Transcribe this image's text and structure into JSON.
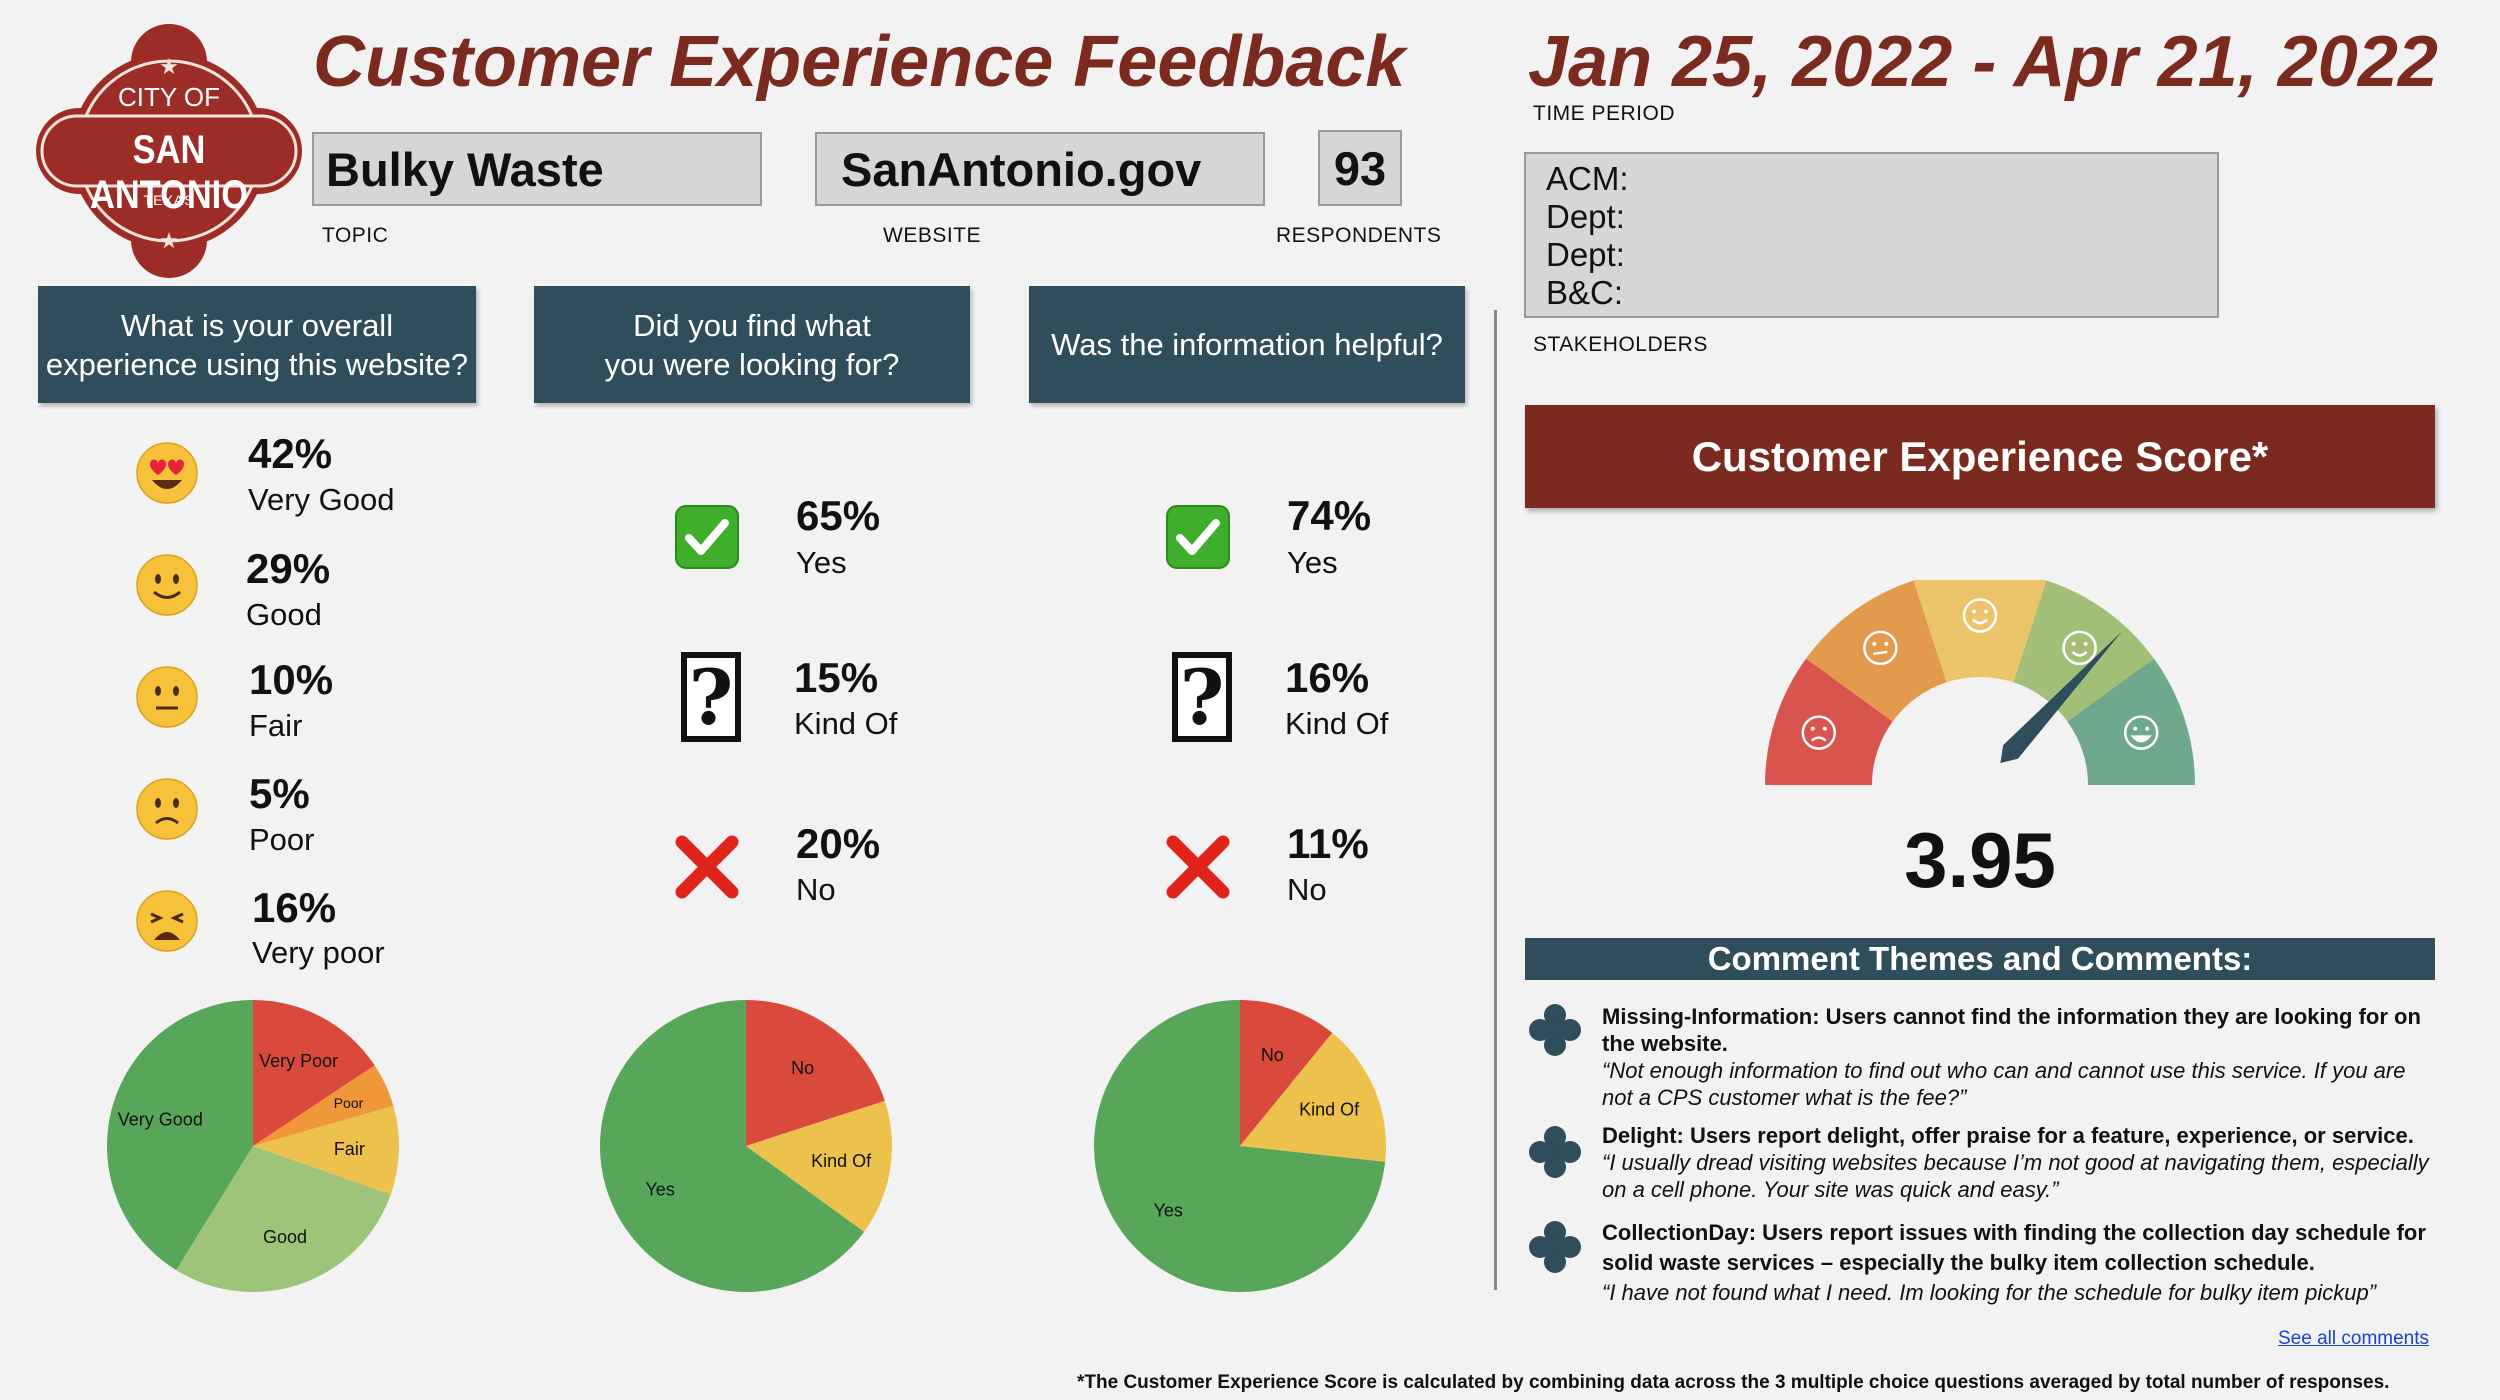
{
  "header": {
    "title": "Customer Experience Feedback",
    "date_range": "Jan 25, 2022 - Apr 21, 2022",
    "time_period_caption": "TIME PERIOD",
    "topic": "Bulky Waste",
    "topic_caption": "TOPIC",
    "website": "SanAntonio.gov",
    "website_caption": "WEBSITE",
    "respondents": "93",
    "respondents_caption": "RESPONDENTS"
  },
  "logo": {
    "line1": "CITY OF",
    "line2": "SAN ANTONIO",
    "line3": "TEXAS",
    "color": "#9b2d26"
  },
  "stakeholders": {
    "lines": [
      "ACM:",
      "Dept:",
      "Dept:",
      "B&C:"
    ],
    "caption": "STAKEHOLDERS"
  },
  "questions": [
    {
      "heading": "What is your overall\nexperience using this website?",
      "answers": [
        {
          "pct": "42%",
          "label": "Very Good",
          "icon": "heart-eyes-emoji-icon"
        },
        {
          "pct": "29%",
          "label": "Good",
          "icon": "smile-emoji-icon"
        },
        {
          "pct": "10%",
          "label": "Fair",
          "icon": "neutral-emoji-icon"
        },
        {
          "pct": "5%",
          "label": "Poor",
          "icon": "frown-emoji-icon"
        },
        {
          "pct": "16%",
          "label": "Very poor",
          "icon": "weary-emoji-icon"
        }
      ]
    },
    {
      "heading": "Did you find what\nyou were looking for?",
      "answers": [
        {
          "pct": "65%",
          "label": "Yes",
          "icon": "check-mark-icon"
        },
        {
          "pct": "15%",
          "label": "Kind Of",
          "icon": "question-mark-icon"
        },
        {
          "pct": "20%",
          "label": "No",
          "icon": "cross-mark-icon"
        }
      ]
    },
    {
      "heading": "Was the information helpful?",
      "answers": [
        {
          "pct": "74%",
          "label": "Yes",
          "icon": "check-mark-icon"
        },
        {
          "pct": "16%",
          "label": "Kind Of",
          "icon": "question-mark-icon"
        },
        {
          "pct": "11%",
          "label": "No",
          "icon": "cross-mark-icon"
        }
      ]
    }
  ],
  "chart_data": [
    {
      "type": "pie",
      "categories": [
        "Very Poor",
        "Poor",
        "Fair",
        "Good",
        "Very Good"
      ],
      "values": [
        16,
        5,
        10,
        29,
        42
      ],
      "colors": [
        "#d94a3d",
        "#f0973a",
        "#ecc14c",
        "#9ec47a",
        "#58a65a"
      ]
    },
    {
      "type": "pie",
      "categories": [
        "No",
        "Kind Of",
        "Yes"
      ],
      "values": [
        20,
        15,
        65
      ],
      "colors": [
        "#d94a3d",
        "#ecc14c",
        "#58a65a"
      ]
    },
    {
      "type": "pie",
      "categories": [
        "No",
        "Kind Of",
        "Yes"
      ],
      "values": [
        11,
        16,
        74
      ],
      "colors": [
        "#d94a3d",
        "#ecc14c",
        "#58a65a"
      ]
    },
    {
      "type": "gauge",
      "min": 1,
      "max": 5,
      "value": 3.95,
      "value_label": "3.95",
      "segment_colors": [
        "#d9534f",
        "#e49a4c",
        "#ecc56a",
        "#a3bf77",
        "#6fa88d"
      ]
    }
  ],
  "score": {
    "heading": "Customer Experience Score*"
  },
  "themes": {
    "heading": "Comment Themes and Comments:",
    "items": [
      {
        "title": "Missing-Information: Users cannot find the information they are looking for on the website.",
        "comment": "“Not enough information to find out who can and cannot use this service. If you are not a CPS customer what is the fee?”"
      },
      {
        "title": "Delight: Users report delight, offer praise for a feature, experience, or service.",
        "comment": "“I usually dread visiting websites because I’m not good at navigating them, especially on a cell phone. Your site was quick and easy.”"
      },
      {
        "title": "CollectionDay: Users report issues with finding the collection day schedule for solid waste services – especially the bulky item collection schedule.",
        "comment": "“I have not found what I need. Im looking for the schedule for bulky item pickup”"
      }
    ],
    "see_all": "See all comments"
  },
  "footnote": "*The Customer Experience Score is calculated by combining data across the 3 multiple choice questions averaged by total number of responses."
}
